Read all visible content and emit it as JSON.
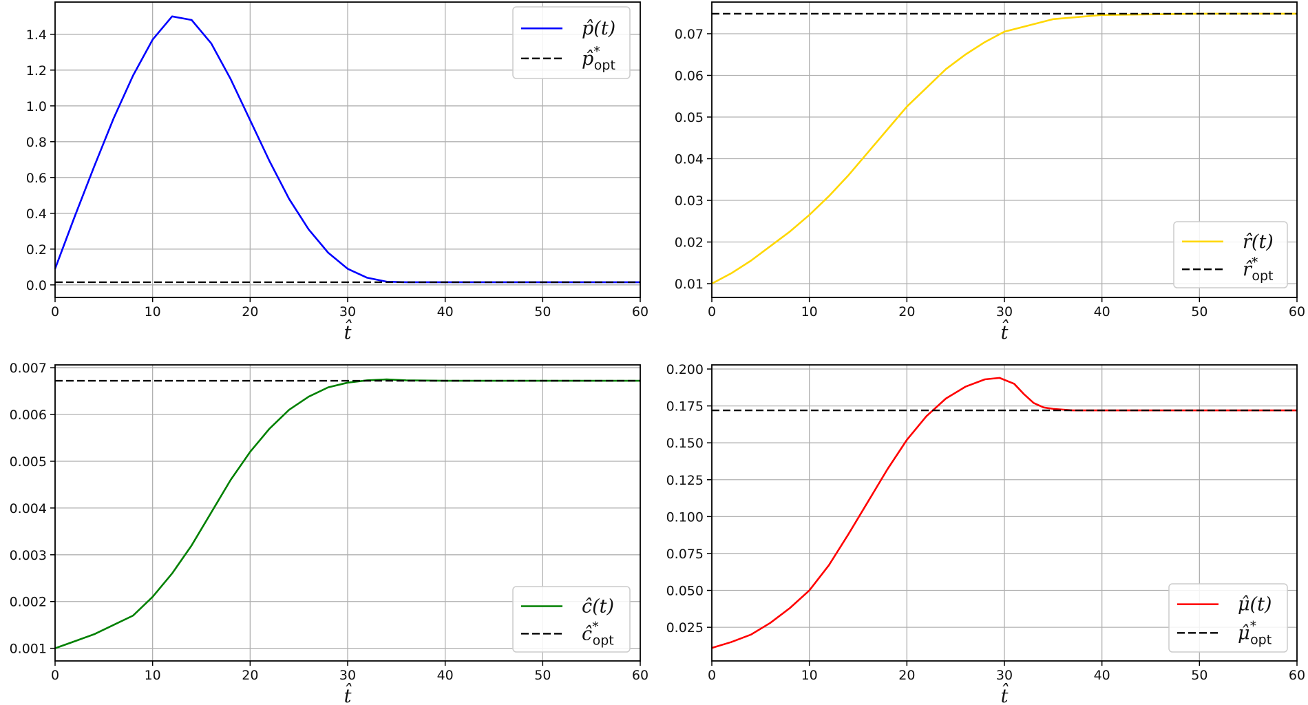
{
  "chart_data": [
    {
      "type": "line",
      "xlabel": "t̂",
      "xlim": [
        0,
        60
      ],
      "ylim": [
        -0.07,
        1.58
      ],
      "xticks": [
        "0",
        "10",
        "20",
        "30",
        "40",
        "50",
        "60"
      ],
      "yticks": [
        "0.0",
        "0.2",
        "0.4",
        "0.6",
        "0.8",
        "1.0",
        "1.2",
        "1.4"
      ],
      "grid": true,
      "legend": "top-right",
      "series": [
        {
          "name": "p̂(t)",
          "color": "#0000ff",
          "style": "solid",
          "x": [
            0,
            2,
            4,
            6,
            8,
            10,
            12,
            14,
            16,
            18,
            20,
            22,
            24,
            26,
            28,
            30,
            32,
            34,
            36,
            40,
            50,
            60
          ],
          "y": [
            0.09,
            0.38,
            0.66,
            0.93,
            1.17,
            1.37,
            1.5,
            1.48,
            1.35,
            1.15,
            0.92,
            0.69,
            0.48,
            0.31,
            0.18,
            0.09,
            0.04,
            0.018,
            0.015,
            0.015,
            0.015,
            0.015
          ]
        },
        {
          "name": "p̂*opt",
          "color": "#000000",
          "style": "dashed",
          "x": [
            0,
            60
          ],
          "y": [
            0.015,
            0.015
          ]
        }
      ]
    },
    {
      "type": "line",
      "xlabel": "t̂",
      "xlim": [
        0,
        60
      ],
      "ylim": [
        0.0067,
        0.0776
      ],
      "xticks": [
        "0",
        "10",
        "20",
        "30",
        "40",
        "50",
        "60"
      ],
      "yticks": [
        "0.01",
        "0.02",
        "0.03",
        "0.04",
        "0.05",
        "0.06",
        "0.07"
      ],
      "grid": true,
      "legend": "bottom-right",
      "series": [
        {
          "name": "r̂(t)",
          "color": "#ffd700",
          "style": "solid",
          "x": [
            0,
            2,
            4,
            6,
            8,
            10,
            12,
            14,
            16,
            18,
            20,
            22,
            24,
            26,
            28,
            30,
            35,
            40,
            50,
            60
          ],
          "y": [
            0.01,
            0.0125,
            0.0155,
            0.019,
            0.0225,
            0.0265,
            0.031,
            0.036,
            0.0415,
            0.047,
            0.0525,
            0.057,
            0.0615,
            0.065,
            0.068,
            0.0705,
            0.0735,
            0.0745,
            0.0748,
            0.0748
          ]
        },
        {
          "name": "r̂*opt",
          "color": "#000000",
          "style": "dashed",
          "x": [
            0,
            60
          ],
          "y": [
            0.0748,
            0.0748
          ]
        }
      ]
    },
    {
      "type": "line",
      "xlabel": "t̂",
      "xlim": [
        0,
        60
      ],
      "ylim": [
        0.00073,
        0.00706
      ],
      "xticks": [
        "0",
        "10",
        "20",
        "30",
        "40",
        "50",
        "60"
      ],
      "yticks": [
        "0.001",
        "0.002",
        "0.003",
        "0.004",
        "0.005",
        "0.006",
        "0.007"
      ],
      "grid": true,
      "legend": "bottom-right",
      "series": [
        {
          "name": "ĉ(t)",
          "color": "#008000",
          "style": "solid",
          "x": [
            0,
            2,
            4,
            6,
            8,
            10,
            12,
            14,
            16,
            18,
            20,
            22,
            24,
            26,
            28,
            30,
            32,
            34,
            36,
            40,
            50,
            60
          ],
          "y": [
            0.001,
            0.00115,
            0.0013,
            0.0015,
            0.0017,
            0.0021,
            0.0026,
            0.0032,
            0.0039,
            0.0046,
            0.0052,
            0.0057,
            0.0061,
            0.00638,
            0.00658,
            0.00668,
            0.00673,
            0.00675,
            0.00673,
            0.00672,
            0.00672,
            0.00672
          ]
        },
        {
          "name": "ĉ*opt",
          "color": "#000000",
          "style": "dashed",
          "x": [
            0,
            60
          ],
          "y": [
            0.00672,
            0.00672
          ]
        }
      ]
    },
    {
      "type": "line",
      "xlabel": "t̂",
      "xlim": [
        0,
        60
      ],
      "ylim": [
        0.0022,
        0.2028
      ],
      "xticks": [
        "0",
        "10",
        "20",
        "30",
        "40",
        "50",
        "60"
      ],
      "yticks": [
        "0.025",
        "0.050",
        "0.075",
        "0.100",
        "0.125",
        "0.150",
        "0.175",
        "0.200"
      ],
      "grid": true,
      "legend": "bottom-right",
      "series": [
        {
          "name": "μ̂(t)",
          "color": "#ff0000",
          "style": "solid",
          "x": [
            0,
            2,
            4,
            6,
            8,
            10,
            12,
            14,
            16,
            18,
            20,
            22,
            24,
            26,
            28,
            29.5,
            31,
            32,
            33,
            34,
            35,
            37,
            40,
            50,
            60
          ],
          "y": [
            0.011,
            0.015,
            0.02,
            0.028,
            0.038,
            0.05,
            0.067,
            0.088,
            0.11,
            0.132,
            0.152,
            0.168,
            0.18,
            0.188,
            0.193,
            0.194,
            0.19,
            0.183,
            0.177,
            0.174,
            0.173,
            0.172,
            0.172,
            0.172,
            0.172
          ]
        },
        {
          "name": "μ̂*opt",
          "color": "#000000",
          "style": "dashed",
          "x": [
            0,
            60
          ],
          "y": [
            0.172,
            0.172
          ]
        }
      ]
    }
  ],
  "legend_labels": [
    [
      {
        "base": "p̂(t)",
        "sub": ""
      },
      {
        "base": "p̂",
        "sup": "*",
        "sub": "opt"
      }
    ],
    [
      {
        "base": "r̂(t)",
        "sub": ""
      },
      {
        "base": "r̂",
        "sup": "*",
        "sub": "opt"
      }
    ],
    [
      {
        "base": "ĉ(t)",
        "sub": ""
      },
      {
        "base": "ĉ",
        "sup": "*",
        "sub": "opt"
      }
    ],
    [
      {
        "base": "μ̂(t)",
        "sub": ""
      },
      {
        "base": "μ̂",
        "sup": "*",
        "sub": "opt"
      }
    ]
  ]
}
